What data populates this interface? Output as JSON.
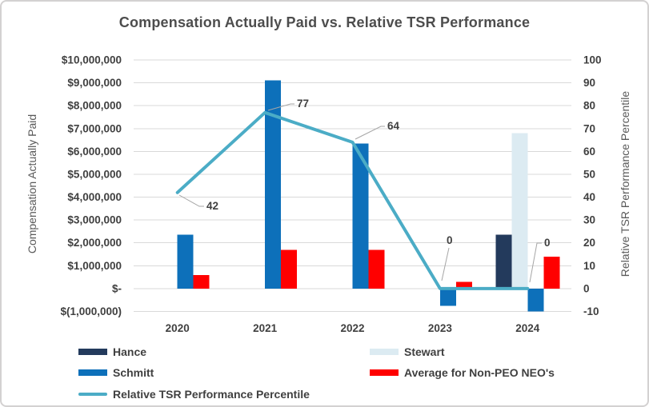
{
  "chart_data": {
    "type": "combo-bar-line",
    "title": "Compensation Actually Paid vs. Relative TSR Performance",
    "categories": [
      "2020",
      "2021",
      "2022",
      "2023",
      "2024"
    ],
    "bar_series": [
      {
        "name": "Hance",
        "color": "#233a5c",
        "values": [
          null,
          null,
          null,
          null,
          2350000
        ]
      },
      {
        "name": "Stewart",
        "color": "#dcebf2",
        "values": [
          null,
          null,
          null,
          null,
          6800000
        ]
      },
      {
        "name": "Schmitt",
        "color": "#0d70ba",
        "values": [
          2350000,
          9100000,
          6350000,
          -750000,
          -1000000
        ]
      },
      {
        "name": "Average for Non-PEO NEO's",
        "color": "#ff0000",
        "values": [
          600000,
          1700000,
          1700000,
          300000,
          1400000
        ]
      }
    ],
    "line_series": {
      "name": "Relative TSR Performance Percentile",
      "color": "#4bacc6",
      "values": [
        42,
        77,
        64,
        0,
        0
      ],
      "data_labels": [
        "42",
        "77",
        "64",
        "0",
        "0"
      ]
    },
    "left_axis": {
      "title": "Compensation Actually Paid",
      "min": -1000000,
      "max": 10000000,
      "tick_labels": [
        "$10,000,000",
        "$9,000,000",
        "$8,000,000",
        "$7,000,000",
        "$6,000,000",
        "$5,000,000",
        "$4,000,000",
        "$3,000,000",
        "$2,000,000",
        "$1,000,000",
        "$-",
        "$(1,000,000)"
      ]
    },
    "right_axis": {
      "title": "Relative TSR Performance Percentile",
      "min": -10,
      "max": 100,
      "tick_labels": [
        "100",
        "90",
        "80",
        "70",
        "60",
        "50",
        "40",
        "30",
        "20",
        "10",
        "0",
        "-10"
      ]
    },
    "grid": "horizontal",
    "gridline_color": "#d9d9d9",
    "leader_line_color": "#a6a6a6",
    "legend_position": "bottom",
    "legend": [
      {
        "label": "Hance",
        "swatch": "box",
        "color": "#233a5c",
        "col": 0,
        "row": 0
      },
      {
        "label": "Stewart",
        "swatch": "box",
        "color": "#dcebf2",
        "col": 1,
        "row": 0
      },
      {
        "label": "Schmitt",
        "swatch": "box",
        "color": "#0d70ba",
        "col": 0,
        "row": 1
      },
      {
        "label": "Average for Non-PEO NEO's",
        "swatch": "box",
        "color": "#ff0000",
        "col": 1,
        "row": 1
      },
      {
        "label": "Relative TSR Performance Percentile",
        "swatch": "line",
        "color": "#4bacc6",
        "col": 0,
        "row": 2
      }
    ]
  }
}
